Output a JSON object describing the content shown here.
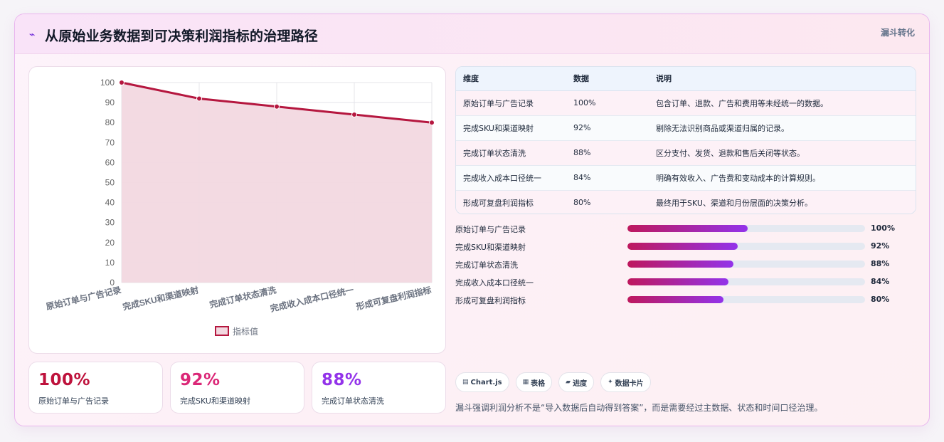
{
  "header": {
    "title": "从原始业务数据到可决策利润指标的治理路径",
    "badge": "漏斗转化",
    "icon": "sparkline-icon"
  },
  "chart_data": {
    "type": "area",
    "categories": [
      "原始订单与广告记录",
      "完成SKU和渠道映射",
      "完成订单状态清洗",
      "完成收入成本口径统一",
      "形成可复盘利润指标"
    ],
    "series": [
      {
        "name": "指标值",
        "values": [
          100,
          92,
          88,
          84,
          80
        ]
      }
    ],
    "ylim": [
      0,
      100
    ],
    "yticks": [
      "0",
      "10",
      "20",
      "30",
      "40",
      "50",
      "60",
      "70",
      "80",
      "90",
      "100"
    ],
    "grid": true,
    "legend": "bottom",
    "line_color": "#b5173f",
    "fill_color": "#f2d8e0"
  },
  "stats": [
    {
      "value": "100%",
      "label": "原始订单与广告记录",
      "color": "#be123c"
    },
    {
      "value": "92%",
      "label": "完成SKU和渠道映射",
      "color": "#db2777"
    },
    {
      "value": "88%",
      "label": "完成订单状态清洗",
      "color": "#9333ea"
    }
  ],
  "table": {
    "headers": [
      "维度",
      "数据",
      "说明"
    ],
    "rows": [
      [
        "原始订单与广告记录",
        "100%",
        "包含订单、退款、广告和费用等未经统一的数据。"
      ],
      [
        "完成SKU和渠道映射",
        "92%",
        "剔除无法识别商品或渠道归属的记录。"
      ],
      [
        "完成订单状态清洗",
        "88%",
        "区分支付、发货、退款和售后关闭等状态。"
      ],
      [
        "完成收入成本口径统一",
        "84%",
        "明确有效收入、广告费和变动成本的计算规则。"
      ],
      [
        "形成可复盘利润指标",
        "80%",
        "最终用于SKU、渠道和月份层面的决策分析。"
      ]
    ]
  },
  "progress": [
    {
      "label": "原始订单与广告记录",
      "value": "100%",
      "fraction": 0.505
    },
    {
      "label": "完成SKU和渠道映射",
      "value": "92%",
      "fraction": 0.465
    },
    {
      "label": "完成订单状态清洗",
      "value": "88%",
      "fraction": 0.445
    },
    {
      "label": "完成收入成本口径统一",
      "value": "84%",
      "fraction": 0.425
    },
    {
      "label": "形成可复盘利润指标",
      "value": "80%",
      "fraction": 0.405
    }
  ],
  "chips": [
    {
      "icon": "chart-icon",
      "glyph": "▤",
      "label": "Chart.js"
    },
    {
      "icon": "table-icon",
      "glyph": "▦",
      "label": "表格"
    },
    {
      "icon": "progress-icon",
      "glyph": "▰",
      "label": "进度"
    },
    {
      "icon": "data-card-icon",
      "glyph": "✦",
      "label": "数据卡片"
    }
  ],
  "footnote": "漏斗强调利润分析不是“导入数据后自动得到答案”，而是需要经过主数据、状态和时间口径治理。"
}
